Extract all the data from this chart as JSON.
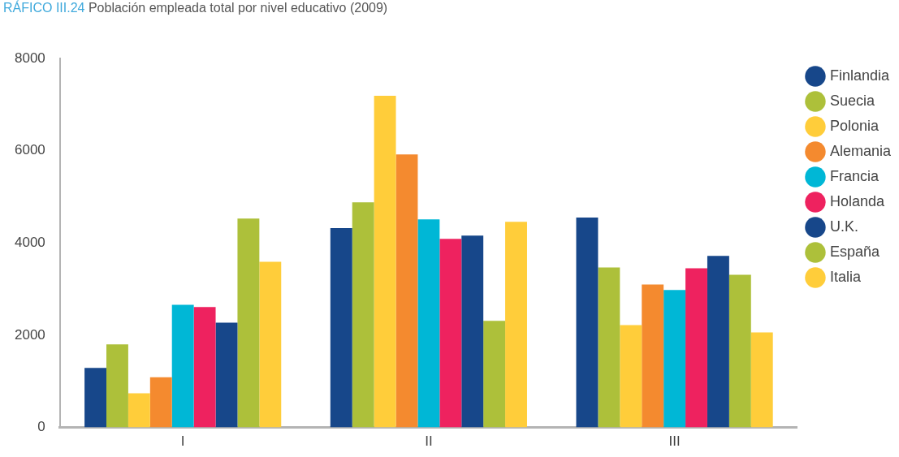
{
  "chart_data": {
    "type": "bar",
    "title": "RÁFICO III.24",
    "subtitle": "Población empleada total por nivel educativo (2009)",
    "categories": [
      "I",
      "II",
      "III"
    ],
    "series": [
      {
        "name": "Finlandia",
        "color": "#17478a",
        "values": [
          1290,
          4320,
          4550
        ]
      },
      {
        "name": "Suecia",
        "color": "#adc03a",
        "values": [
          1800,
          4880,
          3470
        ]
      },
      {
        "name": "Polonia",
        "color": "#ffcd3a",
        "values": [
          740,
          7190,
          2220
        ]
      },
      {
        "name": "Alemania",
        "color": "#f48a2f",
        "values": [
          1090,
          5920,
          3100
        ]
      },
      {
        "name": "Francia",
        "color": "#00b7d6",
        "values": [
          2660,
          4510,
          2980
        ]
      },
      {
        "name": "Holanda",
        "color": "#ee225f",
        "values": [
          2610,
          4090,
          3450
        ]
      },
      {
        "name": "U.K.",
        "color": "#17478a",
        "values": [
          2270,
          4160,
          3720
        ]
      },
      {
        "name": "España",
        "color": "#adc03a",
        "values": [
          4530,
          2310,
          3310
        ]
      },
      {
        "name": "Italia",
        "color": "#ffcd3a",
        "values": [
          3590,
          4460,
          2060
        ]
      }
    ],
    "ylim": [
      0,
      8000
    ],
    "yticks": [
      0,
      2000,
      4000,
      6000,
      8000
    ],
    "grid": false,
    "legend": "right"
  }
}
